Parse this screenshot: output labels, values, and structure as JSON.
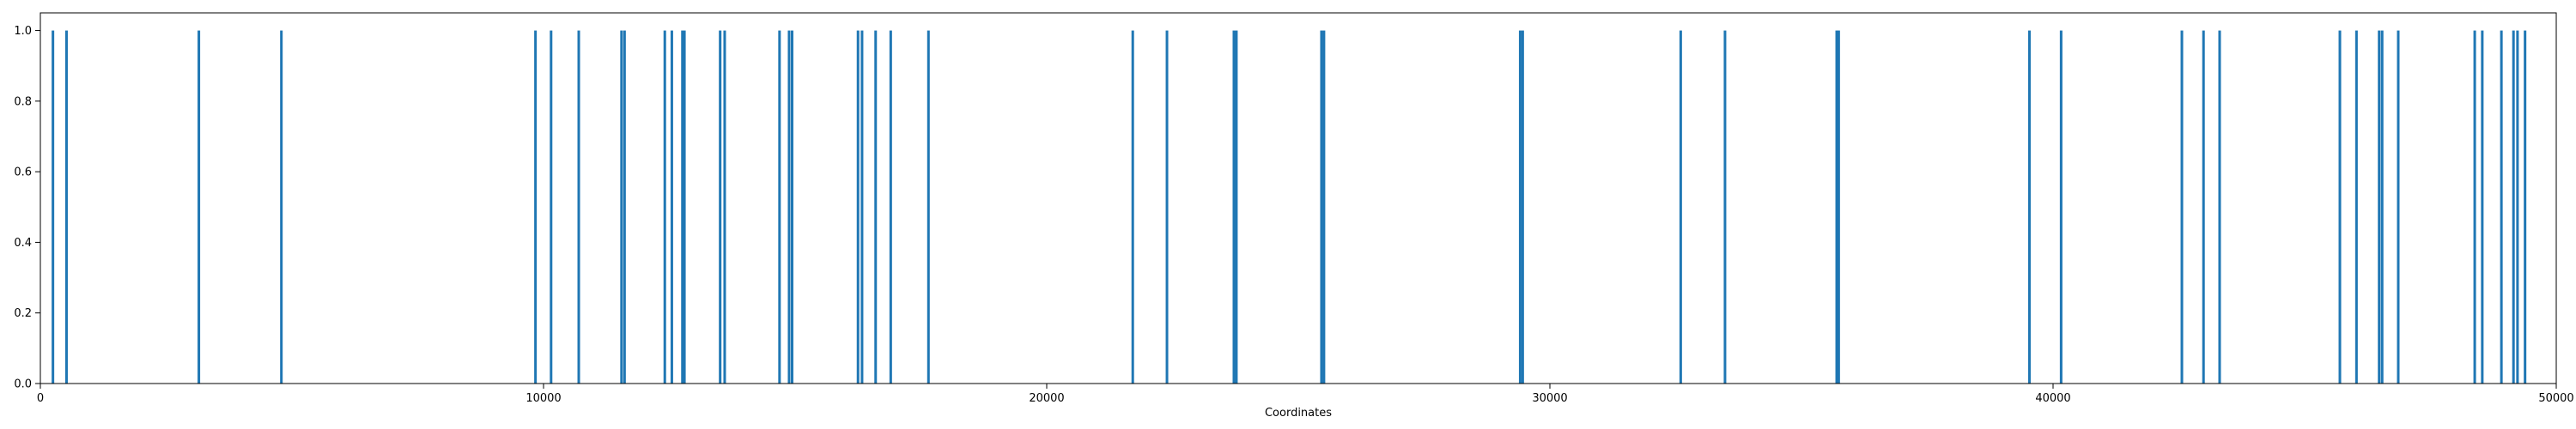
{
  "chart_data": {
    "type": "bar",
    "title": "",
    "xlabel": "Coordinates",
    "ylabel": "",
    "xlim": [
      0,
      50000
    ],
    "ylim": [
      0,
      1.05
    ],
    "xticks": [
      0,
      10000,
      20000,
      30000,
      40000,
      50000
    ],
    "xtick_labels": [
      "0",
      "10000",
      "20000",
      "30000",
      "40000",
      "50000"
    ],
    "yticks": [
      0.0,
      0.2,
      0.4,
      0.6,
      0.8,
      1.0
    ],
    "ytick_labels": [
      "0.0",
      "0.2",
      "0.4",
      "0.6",
      "0.8",
      "1.0"
    ],
    "grid": false,
    "legend": "none",
    "bar_color": "#1f77b4",
    "x": [
      250,
      520,
      3150,
      4790,
      9840,
      10150,
      10700,
      11550,
      11610,
      12410,
      12550,
      12760,
      12800,
      13510,
      13600,
      14690,
      14880,
      14940,
      16250,
      16330,
      16600,
      16900,
      17650,
      21710,
      22390,
      23720,
      23770,
      25460,
      25510,
      29410,
      29460,
      32600,
      33480,
      35700,
      35740,
      39530,
      40160,
      42560,
      42990,
      43310,
      45700,
      46030,
      46480,
      46540,
      46860,
      48380,
      48530,
      48910,
      49150,
      49230,
      49380
    ],
    "values": [
      1,
      1,
      1,
      1,
      1,
      1,
      1,
      1,
      1,
      1,
      1,
      1,
      1,
      1,
      1,
      1,
      1,
      1,
      1,
      1,
      1,
      1,
      1,
      1,
      1,
      1,
      1,
      1,
      1,
      1,
      1,
      1,
      1,
      1,
      1,
      1,
      1,
      1,
      1,
      1,
      1,
      1,
      1,
      1,
      1,
      1,
      1,
      1,
      1,
      1,
      1
    ]
  }
}
